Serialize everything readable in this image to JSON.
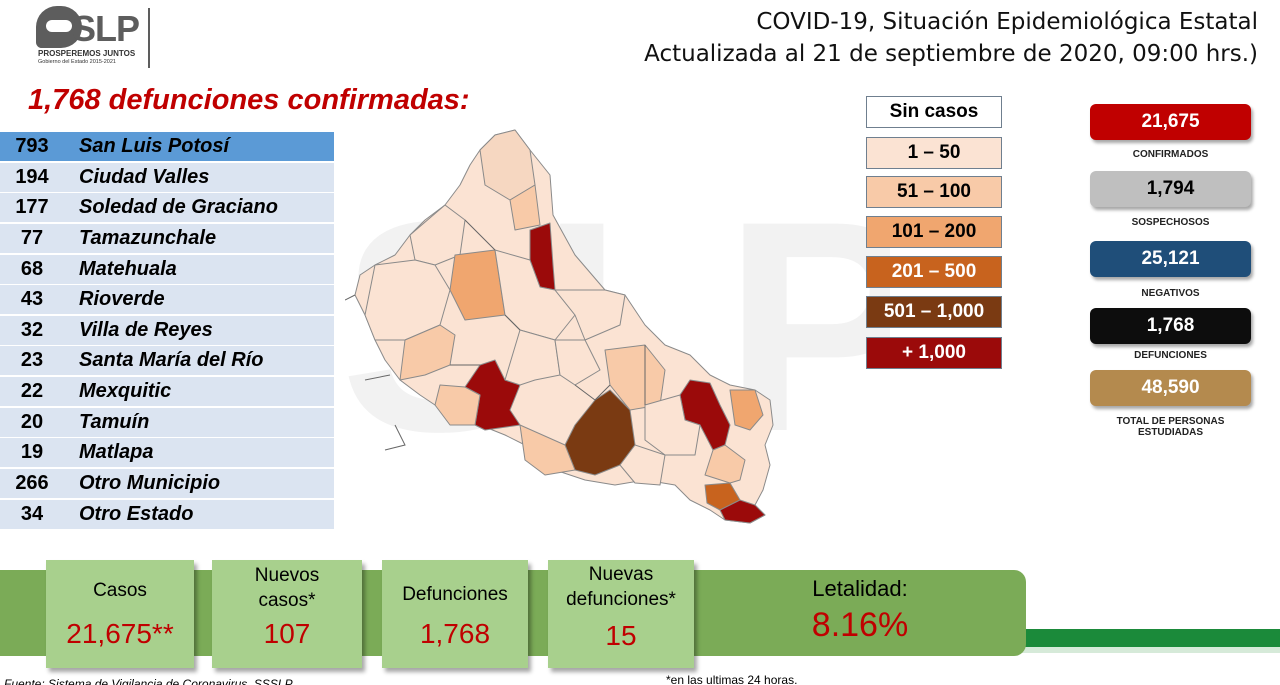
{
  "logo": {
    "main": "SLP",
    "line1": "PROSPEREMOS JUNTOS",
    "line2": "Gobierno del Estado 2015-2021"
  },
  "title": {
    "line1": "COVID-19, Situación Epidemiológica Estatal",
    "line2": "Actualizada al 21 de septiembre de 2020, 09:00 hrs.)"
  },
  "headline": "1,768 defunciones confirmadas:",
  "municipios": [
    {
      "count": "793",
      "name": "San Luis Potosí"
    },
    {
      "count": "194",
      "name": "Ciudad Valles"
    },
    {
      "count": "177",
      "name": "Soledad de Graciano"
    },
    {
      "count": "77",
      "name": "Tamazunchale"
    },
    {
      "count": "68",
      "name": "Matehuala"
    },
    {
      "count": "43",
      "name": "Rioverde"
    },
    {
      "count": "32",
      "name": "Villa de Reyes"
    },
    {
      "count": "23",
      "name": "Santa María del Río"
    },
    {
      "count": "22",
      "name": "Mexquitic"
    },
    {
      "count": "20",
      "name": "Tamuín"
    },
    {
      "count": "19",
      "name": "Matlapa"
    },
    {
      "count": "266",
      "name": "Otro Municipio"
    },
    {
      "count": "34",
      "name": "Otro Estado"
    }
  ],
  "legend": [
    {
      "label": "Sin casos",
      "color": "#ffffff",
      "text_color": "#000000"
    },
    {
      "label": "1 – 50",
      "color": "#fbe3d3",
      "text_color": "#000000"
    },
    {
      "label": "51 – 100",
      "color": "#f8caa8",
      "text_color": "#000000"
    },
    {
      "label": "101 – 200",
      "color": "#f0a66f",
      "text_color": "#000000"
    },
    {
      "label": "201 – 500",
      "color": "#c8631e",
      "text_color": "#ffffff"
    },
    {
      "label": "501 – 1,000",
      "color": "#7a3a12",
      "text_color": "#ffffff"
    },
    {
      "label": "+ 1,000",
      "color": "#9b0a0a",
      "text_color": "#ffffff"
    }
  ],
  "stats": [
    {
      "value": "21,675",
      "label": "CONFIRMADOS",
      "bg": "#c00000",
      "fg": "#ffffff"
    },
    {
      "value": "1,794",
      "label": "SOSPECHOSOS",
      "bg": "#bfbfbf",
      "fg": "#000000"
    },
    {
      "value": "25,121",
      "label": "NEGATIVOS",
      "bg": "#1f4e79",
      "fg": "#ffffff"
    },
    {
      "value": "1,768",
      "label": "DEFUNCIONES",
      "bg": "#0d0d0d",
      "fg": "#ffffff"
    },
    {
      "value": "48,590",
      "label": "TOTAL DE PERSONAS ESTUDIADAS",
      "bg": "#b48a4e",
      "fg": "#ffffff"
    }
  ],
  "summary": {
    "casos_label": "Casos",
    "casos_value": "21,675**",
    "nuevos_casos_label": "Nuevos casos*",
    "nuevos_casos_value": "107",
    "defunciones_label": "Defunciones",
    "defunciones_value": "1,768",
    "nuevas_defunciones_label": "Nuevas defunciones*",
    "nuevas_defunciones_value": "15",
    "letalidad_label": "Letalidad:",
    "letalidad_value": "8.16%"
  },
  "footnote": "*en las ultimas 24 horas.",
  "source": "Fuente: Sistema de Vigilancia de Coronavirus, SSSLP"
}
